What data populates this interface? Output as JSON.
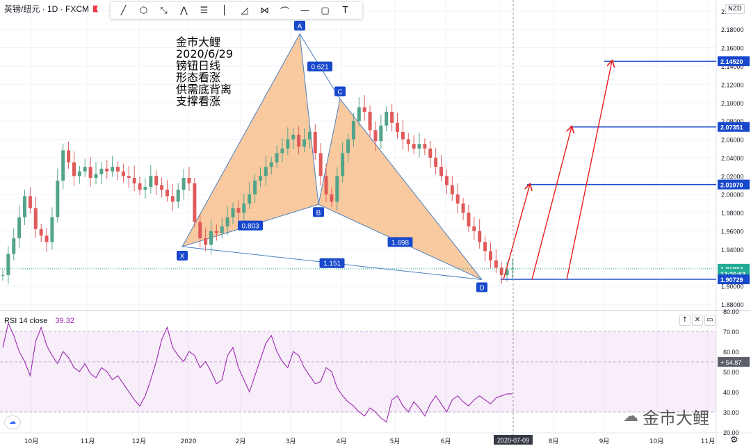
{
  "header": {
    "symbol_title": "英镑/纽元 · 1D · FXCM",
    "currency": "NZD"
  },
  "toolbar": {
    "tools": [
      {
        "name": "trend-line-tool",
        "glyph": "╱"
      },
      {
        "name": "polygon-tool",
        "glyph": "⬡"
      },
      {
        "name": "path-tool",
        "glyph": "⤡"
      },
      {
        "name": "xabcd-pattern-tool",
        "glyph": "⋀"
      },
      {
        "name": "fib-tool",
        "glyph": "☰"
      },
      {
        "name": "vertical-line-tool",
        "glyph": "│"
      },
      {
        "name": "triangle-tool",
        "glyph": "◿"
      },
      {
        "name": "abcd-pattern-tool",
        "glyph": "⋈"
      },
      {
        "name": "curve-tool",
        "glyph": "⌒"
      },
      {
        "name": "horizontal-line-tool",
        "glyph": "—"
      },
      {
        "name": "rectangle-tool",
        "glyph": "▢"
      },
      {
        "name": "text-tool",
        "glyph": "T"
      }
    ]
  },
  "annotation": {
    "lines": [
      "金市大鲤",
      "2020/6/29",
      "镑钮日线",
      "形态看涨",
      "供需底背离",
      "支撑看涨"
    ]
  },
  "chart_data": {
    "type": "line",
    "price_axis": {
      "ylim": [
        1.874,
        2.212
      ],
      "ticks": [
        "2.20000",
        "2.18000",
        "2.16000",
        "2.14000",
        "2.12000",
        "2.10000",
        "2.08000",
        "2.06000",
        "2.04000",
        "2.02000",
        "2.00000",
        "1.98000",
        "1.96000",
        "1.94000",
        "1.92000",
        "1.90000",
        "1.88000"
      ]
    },
    "x_axis": {
      "labels": [
        "10月",
        "11月",
        "12月",
        "2020",
        "2月",
        "3月",
        "4月",
        "5月",
        "6月",
        "7月",
        "8月",
        "9月",
        "10月",
        "11月"
      ],
      "current_date": "2020-07-09"
    },
    "price_series": {
      "name": "GBPNZD",
      "close": [
        1.912,
        1.935,
        1.952,
        1.975,
        1.998,
        1.985,
        1.962,
        1.955,
        1.948,
        1.975,
        2.015,
        2.048,
        2.035,
        2.02,
        2.025,
        2.03,
        2.018,
        2.022,
        2.028,
        2.025,
        2.03,
        2.025,
        2.02,
        2.018,
        2.012,
        2.005,
        2.008,
        2.02,
        2.01,
        2.005,
        1.998,
        1.992,
        2.005,
        2.018,
        2.012,
        1.97,
        1.952,
        1.945,
        1.96,
        1.958,
        1.965,
        1.975,
        1.985,
        1.98,
        1.99,
        2.0,
        2.015,
        2.02,
        2.03,
        2.035,
        2.045,
        2.05,
        2.06,
        2.065,
        2.052,
        2.06,
        2.068,
        2.045,
        2.02,
        2.0,
        1.992,
        2.02,
        2.045,
        2.06,
        2.08,
        2.095,
        2.09,
        2.07,
        2.058,
        2.075,
        2.09,
        2.078,
        2.068,
        2.06,
        2.055,
        2.05,
        2.055,
        2.05,
        2.04,
        2.03,
        2.02,
        2.01,
        2.0,
        1.99,
        1.98,
        1.965,
        1.96,
        1.948,
        1.938,
        1.928,
        1.92,
        1.912,
        1.918,
        1.919
      ]
    },
    "harmonic_pattern": {
      "points": [
        {
          "label": "X",
          "price": 1.943
        },
        {
          "label": "A",
          "price": 2.175
        },
        {
          "label": "B",
          "price": 1.989
        },
        {
          "label": "C",
          "price": 2.104
        },
        {
          "label": "D",
          "price": 1.907
        }
      ],
      "ratios": [
        {
          "label": "0.803",
          "between": "X-B"
        },
        {
          "label": "0.621",
          "between": "A-C"
        },
        {
          "label": "1.698",
          "between": "B-D"
        },
        {
          "label": "1.151",
          "between": "X-D"
        }
      ]
    },
    "price_labels": [
      {
        "text": "2.14520",
        "price": 2.1452,
        "color": "#1848cc"
      },
      {
        "text": "2.07351",
        "price": 2.07351,
        "color": "#1848cc"
      },
      {
        "text": "2.01070",
        "price": 2.0107,
        "color": "#1848cc"
      },
      {
        "text": "1.91884",
        "price": 1.91884,
        "color": "#22ab94"
      },
      {
        "text": "17:26:53",
        "price": 1.9135,
        "color": "#22ab94"
      },
      {
        "text": "1.90729",
        "price": 1.90729,
        "color": "#1848cc"
      }
    ],
    "rsi": {
      "name": "RSI 14 close",
      "last": "39.32",
      "ylim": [
        20,
        80
      ],
      "band": [
        30,
        70
      ],
      "midline_label": "54.87",
      "ticks": [
        "80.00",
        "70.00",
        "60.00",
        "50.00",
        "40.00",
        "30.00",
        "20.00"
      ],
      "values": [
        62,
        74,
        68,
        60,
        55,
        48,
        65,
        72,
        63,
        58,
        54,
        60,
        57,
        52,
        50,
        54,
        49,
        47,
        52,
        50,
        46,
        48,
        44,
        40,
        36,
        33,
        38,
        46,
        55,
        66,
        72,
        62,
        58,
        55,
        60,
        58,
        52,
        55,
        50,
        44,
        46,
        58,
        62,
        52,
        46,
        40,
        48,
        56,
        64,
        68,
        60,
        55,
        52,
        60,
        58,
        52,
        48,
        44,
        45,
        52,
        50,
        42,
        38,
        35,
        33,
        30,
        28,
        32,
        30,
        27,
        25,
        36,
        38,
        33,
        30,
        35,
        32,
        28,
        34,
        38,
        34,
        30,
        36,
        38,
        35,
        33,
        36,
        38,
        36,
        34,
        37,
        38,
        39,
        39
      ]
    }
  },
  "pane_buttons": [
    "↑",
    "✕",
    "▭"
  ],
  "watermark": {
    "text": "金市大鲤"
  }
}
